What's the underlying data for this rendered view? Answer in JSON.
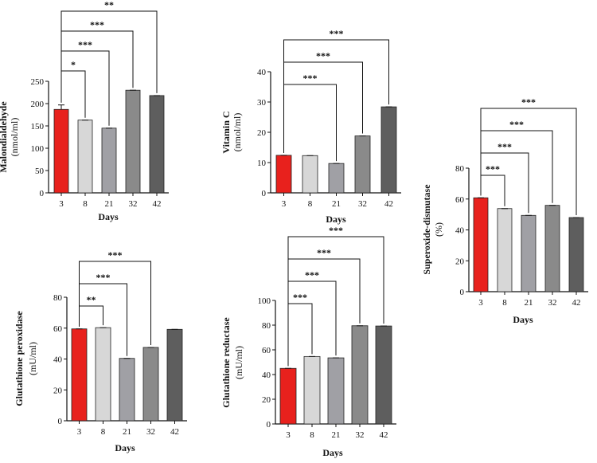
{
  "colors": [
    "#e8211d",
    "#d7d7d7",
    "#a0a0a5",
    "#8a8a8a",
    "#5e5e5e"
  ],
  "chart_data": [
    {
      "type": "bar",
      "xlabel": "Days",
      "ylabel": "Malondialdehyde",
      "yunit": "(nmol/ml)",
      "categories": [
        "3",
        "8",
        "21",
        "32",
        "42"
      ],
      "values": [
        187,
        163,
        145,
        230,
        218
      ],
      "errors": [
        10,
        0,
        0,
        0,
        0
      ],
      "ylim": [
        0,
        250
      ],
      "yticks": [
        0,
        50,
        100,
        150,
        200,
        250
      ],
      "significance": [
        {
          "from": 0,
          "to": 1,
          "label": "*"
        },
        {
          "from": 0,
          "to": 2,
          "label": "***"
        },
        {
          "from": 0,
          "to": 3,
          "label": "***"
        },
        {
          "from": 0,
          "to": 4,
          "label": "**"
        }
      ]
    },
    {
      "type": "bar",
      "xlabel": "Days",
      "ylabel": "Vitamin C",
      "yunit": "(nmol/ml)",
      "categories": [
        "3",
        "8",
        "21",
        "32",
        "42"
      ],
      "values": [
        12.4,
        12.3,
        9.7,
        18.8,
        28.4
      ],
      "errors": [
        0,
        0,
        0,
        0,
        0
      ],
      "ylim": [
        0,
        40
      ],
      "yticks": [
        0,
        10,
        20,
        30,
        40
      ],
      "significance": [
        {
          "from": 0,
          "to": 2,
          "label": "***"
        },
        {
          "from": 0,
          "to": 3,
          "label": "***"
        },
        {
          "from": 0,
          "to": 4,
          "label": "***"
        }
      ]
    },
    {
      "type": "bar",
      "xlabel": "Days",
      "ylabel": "Superoxide-dismutase",
      "yunit": "(%)",
      "categories": [
        "3",
        "8",
        "21",
        "32",
        "42"
      ],
      "values": [
        60.8,
        53.8,
        49.4,
        55.9,
        48
      ],
      "errors": [
        0,
        0,
        0,
        0,
        0
      ],
      "ylim": [
        0,
        80
      ],
      "yticks": [
        0,
        20,
        40,
        60,
        80
      ],
      "significance": [
        {
          "from": 0,
          "to": 1,
          "label": "***"
        },
        {
          "from": 0,
          "to": 2,
          "label": "***"
        },
        {
          "from": 0,
          "to": 3,
          "label": "***"
        },
        {
          "from": 0,
          "to": 4,
          "label": "***"
        }
      ]
    },
    {
      "type": "bar",
      "xlabel": "Days",
      "ylabel": "Glutathione peroxidase",
      "yunit": "(mU/ml)",
      "categories": [
        "3",
        "8",
        "21",
        "32",
        "42"
      ],
      "values": [
        59.5,
        60.3,
        40.4,
        47.5,
        59.2
      ],
      "errors": [
        0,
        0,
        0,
        0,
        0
      ],
      "ylim": [
        0,
        80
      ],
      "yticks": [
        0,
        20,
        40,
        60,
        80
      ],
      "significance": [
        {
          "from": 0,
          "to": 1,
          "label": "**"
        },
        {
          "from": 0,
          "to": 2,
          "label": "***"
        },
        {
          "from": 0,
          "to": 3,
          "label": "***"
        }
      ]
    },
    {
      "type": "bar",
      "xlabel": "Days",
      "ylabel": "Glutathione reductase",
      "yunit": "(mU/ml)",
      "categories": [
        "3",
        "8",
        "21",
        "32",
        "42"
      ],
      "values": [
        45,
        54.6,
        53.5,
        79.5,
        79.3
      ],
      "errors": [
        0,
        0,
        0,
        0,
        0
      ],
      "ylim": [
        0,
        100
      ],
      "yticks": [
        0,
        20,
        40,
        60,
        80,
        100
      ],
      "significance": [
        {
          "from": 0,
          "to": 1,
          "label": "***"
        },
        {
          "from": 0,
          "to": 2,
          "label": "***"
        },
        {
          "from": 0,
          "to": 3,
          "label": "***"
        },
        {
          "from": 0,
          "to": 4,
          "label": "***"
        }
      ]
    }
  ]
}
